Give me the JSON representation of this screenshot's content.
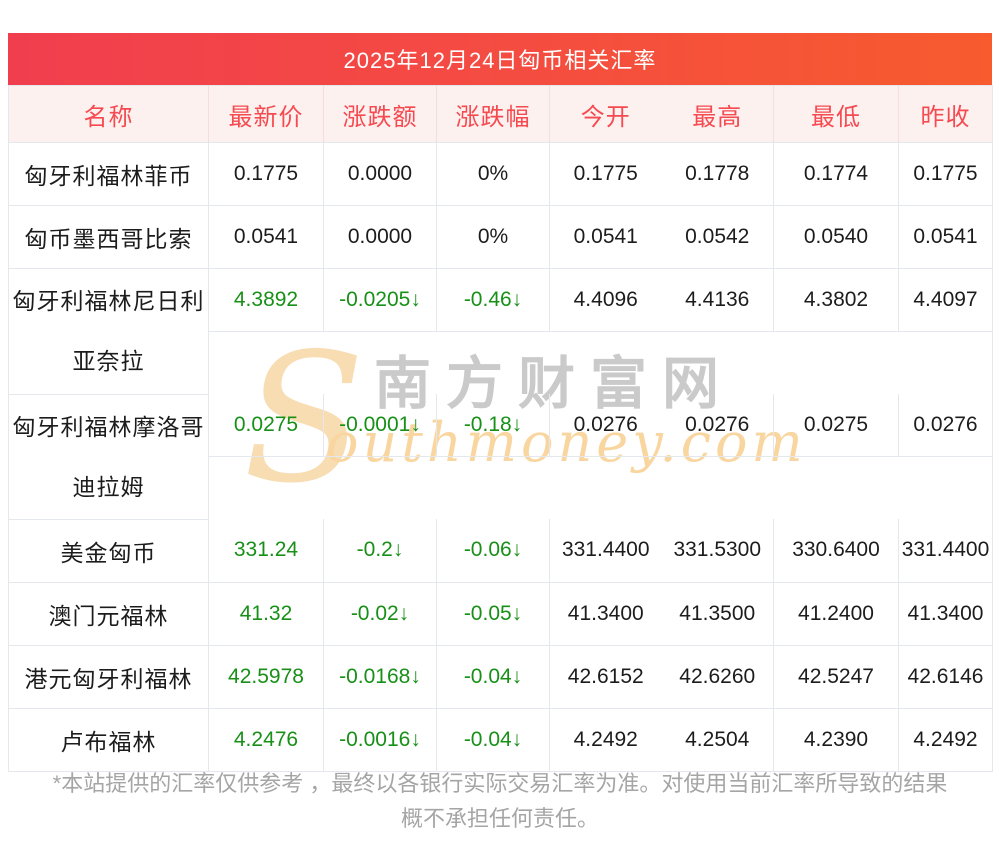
{
  "title": "2025年12月24日匈币相关汇率",
  "table": {
    "columns": [
      "名称",
      "最新价",
      "涨跌额",
      "涨跌幅",
      "今开",
      "最高",
      "最低",
      "昨收"
    ],
    "rows": [
      {
        "name": "匈牙利福林菲币",
        "trend": "flat",
        "values": [
          "0.1775",
          "0.0000",
          "0%",
          "0.1775",
          "0.1778",
          "0.1774",
          "0.1775"
        ]
      },
      {
        "name": "匈币墨西哥比索",
        "trend": "flat",
        "values": [
          "0.0541",
          "0.0000",
          "0%",
          "0.0541",
          "0.0542",
          "0.0540",
          "0.0541"
        ]
      },
      {
        "name": "匈牙利福林尼日利\n亚奈拉",
        "trend": "down",
        "tall": true,
        "values": [
          "4.3892",
          "-0.0205↓",
          "-0.46↓",
          "4.4096",
          "4.4136",
          "4.3802",
          "4.4097"
        ]
      },
      {
        "name": "匈牙利福林摩洛哥\n迪拉姆",
        "trend": "down",
        "tall": true,
        "values": [
          "0.0275",
          "-0.0001↓",
          "-0.18↓",
          "0.0276",
          "0.0276",
          "0.0275",
          "0.0276"
        ]
      },
      {
        "name": "美金匈币",
        "trend": "down",
        "values": [
          "331.24",
          "-0.2↓",
          "-0.06↓",
          "331.4400",
          "331.5300",
          "330.6400",
          "331.4400"
        ]
      },
      {
        "name": "澳门元福林",
        "trend": "down",
        "values": [
          "41.32",
          "-0.02↓",
          "-0.05↓",
          "41.3400",
          "41.3500",
          "41.2400",
          "41.3400"
        ]
      },
      {
        "name": "港元匈牙利福林",
        "trend": "down",
        "values": [
          "42.5978",
          "-0.0168↓",
          "-0.04↓",
          "42.6152",
          "42.6260",
          "42.5247",
          "42.6146"
        ]
      },
      {
        "name": "卢布福林",
        "trend": "down",
        "values": [
          "4.2476",
          "-0.0016↓",
          "-0.04↓",
          "4.2492",
          "4.2504",
          "4.2390",
          "4.2492"
        ]
      }
    ]
  },
  "watermark": {
    "s": "S",
    "cn": "南方财富网",
    "en": "outhmoney.com"
  },
  "footer": {
    "line1": "*本站提供的汇率仅供参考 ，最终以各银行实际交易汇率为准。对使用当前汇率所导致的结果",
    "line2": "概不承担任何责任。"
  },
  "colors": {
    "title_gradient_left": "#f13e4e",
    "title_gradient_right": "#f75b2e",
    "header_bg": "#fdf1f0",
    "header_text": "#f54a50",
    "down_green": "#189018",
    "body_text": "#1c1c1c",
    "border": "#e4e7ec",
    "footer_text": "#a5a5a5",
    "watermark_gray": "#cacaca",
    "watermark_orange": "#f9d6a0"
  }
}
